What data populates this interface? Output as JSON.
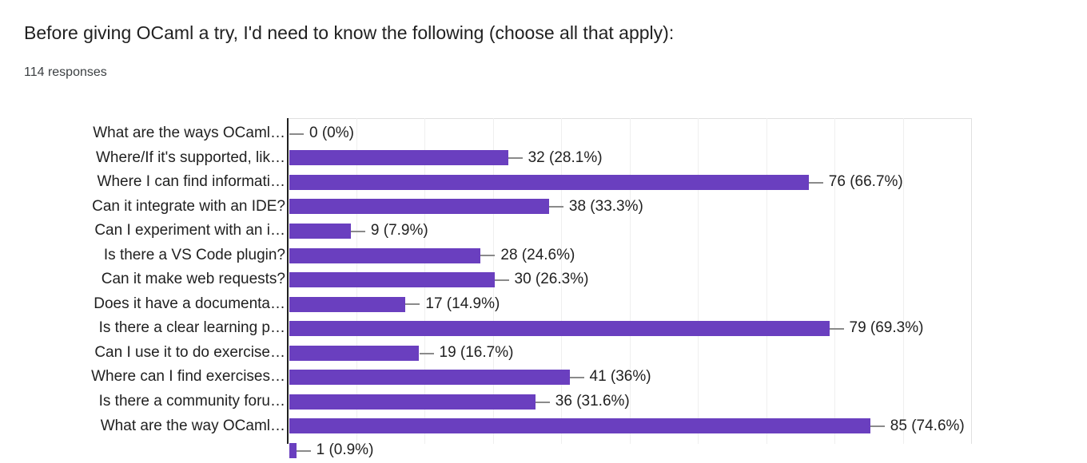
{
  "header": {
    "title": "Before giving OCaml a try, I'd need to know the following (choose all that apply):",
    "responses_label": "114 responses"
  },
  "chart_data": {
    "type": "bar",
    "orientation": "horizontal",
    "title": "Before giving OCaml a try, I'd need to know the following (choose all that apply):",
    "subtitle": "114 responses",
    "total_responses": 114,
    "categories": [
      "What are the ways OCaml…",
      "Where/If it's supported, lik…",
      "Where I can find informati…",
      "Can it integrate with an IDE?",
      "Can I experiment with an i…",
      "Is there a VS Code plugin?",
      "Can it make web requests?",
      "Does it have a documenta…",
      "Is there a clear learning p…",
      "Can I use it to do exercise…",
      "Where can I find exercises…",
      "Is there a community foru…",
      "What are the way OCaml…",
      ""
    ],
    "values": [
      0,
      32,
      76,
      38,
      9,
      28,
      30,
      17,
      79,
      19,
      41,
      36,
      85,
      1
    ],
    "value_labels": [
      "0 (0%)",
      "32 (28.1%)",
      "76 (66.7%)",
      "38 (33.3%)",
      "9 (7.9%)",
      "28 (24.6%)",
      "30 (26.3%)",
      "17 (14.9%)",
      "79 (69.3%)",
      "19 (16.7%)",
      "41 (36%)",
      "36 (31.6%)",
      "85 (74.6%)",
      "1 (0.9%)"
    ],
    "xlim": [
      0,
      100
    ],
    "gridline_interval": 10,
    "grid": true,
    "legend": "none",
    "bar_color": "#6a3fbf",
    "axis_color": "#212121",
    "gridline_color": "#efefef",
    "plot_border_color": "#e0e0e0",
    "leader_color": "#8a8a8a",
    "text_color": "#212121"
  }
}
